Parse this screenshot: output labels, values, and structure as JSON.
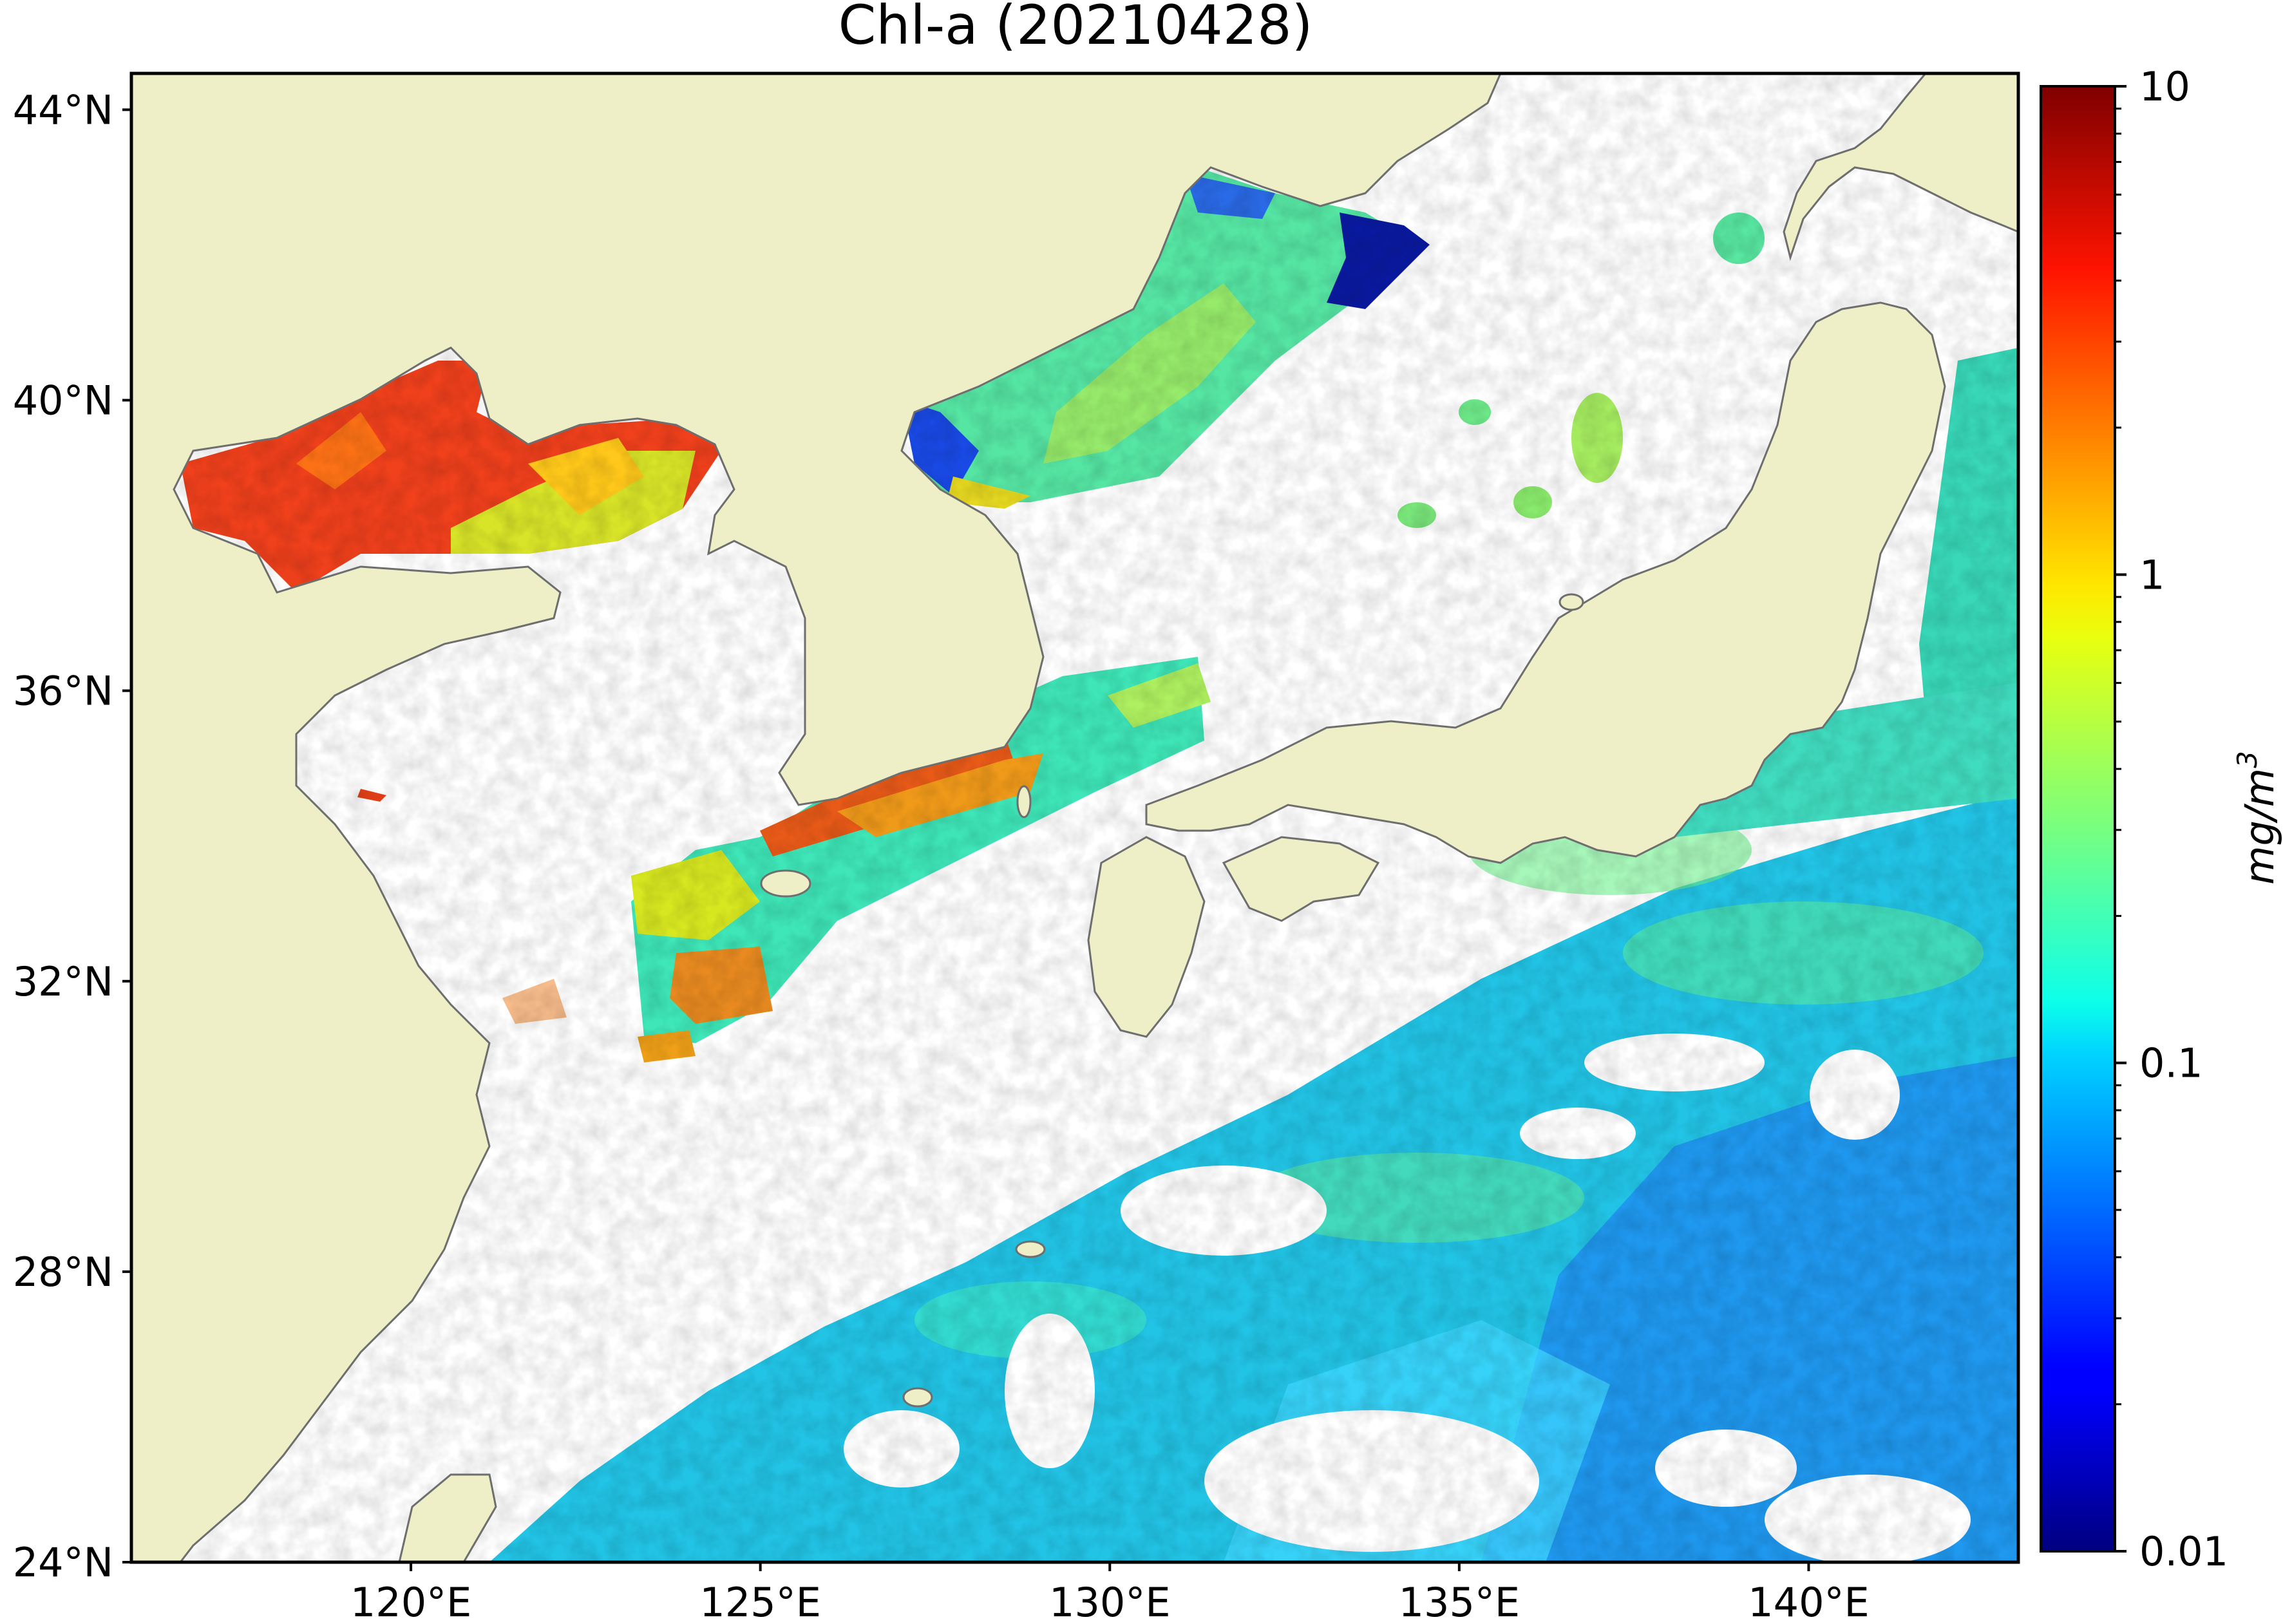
{
  "title": "Chl-a (20210428)",
  "map": {
    "lon_range": [
      116.0,
      143.0
    ],
    "lat_range": [
      24.0,
      44.5
    ],
    "lat_ticks": [
      {
        "value": 44,
        "label": "44°N"
      },
      {
        "value": 40,
        "label": "40°N"
      },
      {
        "value": 36,
        "label": "36°N"
      },
      {
        "value": 32,
        "label": "32°N"
      },
      {
        "value": 28,
        "label": "28°N"
      },
      {
        "value": 24,
        "label": "24°N"
      }
    ],
    "lon_ticks": [
      {
        "value": 120,
        "label": "120°E"
      },
      {
        "value": 125,
        "label": "125°E"
      },
      {
        "value": 130,
        "label": "130°E"
      },
      {
        "value": 135,
        "label": "135°E"
      },
      {
        "value": 140,
        "label": "140°E"
      }
    ],
    "land_color": "#efefc7",
    "coast_color": "#6e6e6e",
    "no_data_color": "#ffffff"
  },
  "colorbar": {
    "scale": "log",
    "range": [
      0.01,
      10
    ],
    "colormap": "jet",
    "ticks": [
      {
        "value": 10,
        "label": "10"
      },
      {
        "value": 1,
        "label": "1"
      },
      {
        "value": 0.1,
        "label": "0.1"
      },
      {
        "value": 0.01,
        "label": "0.01"
      }
    ],
    "label_main": "mg/m",
    "label_sup": "3"
  }
}
